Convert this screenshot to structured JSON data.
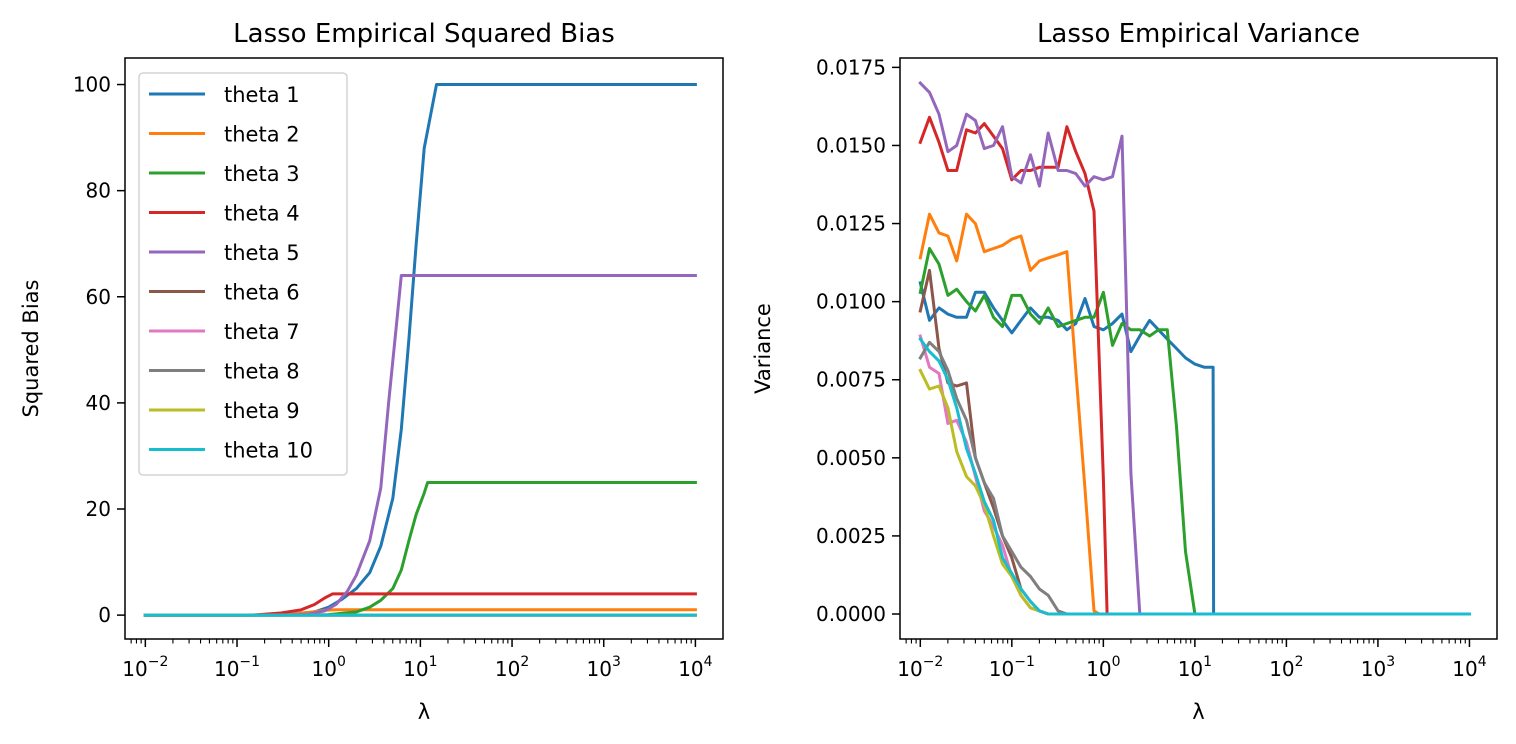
{
  "chart_data": [
    {
      "type": "line",
      "title": "Lasso Empirical Squared Bias",
      "xlabel": "λ",
      "ylabel": "Squared Bias",
      "xscale": "log",
      "xlim": [
        0.006,
        20000
      ],
      "ylim": [
        -4.5,
        105
      ],
      "xticks": [
        {
          "value": 0.01,
          "base": "10",
          "exp": "−2"
        },
        {
          "value": 0.1,
          "base": "10",
          "exp": "−1"
        },
        {
          "value": 1,
          "base": "10",
          "exp": "0"
        },
        {
          "value": 10,
          "base": "10",
          "exp": "1"
        },
        {
          "value": 100,
          "base": "10",
          "exp": "2"
        },
        {
          "value": 1000,
          "base": "10",
          "exp": "3"
        },
        {
          "value": 10000,
          "base": "10",
          "exp": "4"
        }
      ],
      "yticks": [
        {
          "value": 0,
          "label": "0"
        },
        {
          "value": 20,
          "label": "20"
        },
        {
          "value": 40,
          "label": "40"
        },
        {
          "value": 60,
          "label": "60"
        },
        {
          "value": 80,
          "label": "80"
        },
        {
          "value": 100,
          "label": "100"
        }
      ],
      "legend": "upper-left",
      "grid": false,
      "series": [
        {
          "name": "theta 1",
          "color": "#1f77b4",
          "x": [
            0.01,
            0.1,
            0.2,
            0.4,
            0.7,
            1.0,
            1.4,
            2.0,
            2.8,
            3.7,
            5.0,
            6.2,
            7.5,
            9.0,
            11.0,
            15.0,
            20.0,
            100,
            1000,
            10000
          ],
          "y": [
            0,
            0,
            0.05,
            0.2,
            0.6,
            1.5,
            3,
            5,
            8,
            13,
            22,
            35,
            52,
            70,
            88,
            100,
            100,
            100,
            100,
            100
          ]
        },
        {
          "name": "theta 2",
          "color": "#ff7f0e",
          "x": [
            0.01,
            0.1,
            0.3,
            0.6,
            0.9,
            1.2,
            2.0,
            10,
            100,
            1000,
            10000
          ],
          "y": [
            0,
            0,
            0.1,
            0.5,
            0.9,
            1,
            1,
            1,
            1,
            1,
            1
          ]
        },
        {
          "name": "theta 3",
          "color": "#2ca02c",
          "x": [
            0.01,
            0.3,
            1.0,
            2.0,
            2.8,
            3.7,
            5.0,
            6.2,
            7.5,
            9.0,
            11.0,
            12.0,
            15.0,
            100,
            1000,
            10000
          ],
          "y": [
            0,
            0,
            0.1,
            0.6,
            1.5,
            2.8,
            5,
            8.5,
            14,
            19,
            23,
            25,
            25,
            25,
            25,
            25
          ]
        },
        {
          "name": "theta 4",
          "color": "#d62728",
          "x": [
            0.01,
            0.15,
            0.3,
            0.5,
            0.7,
            0.9,
            1.1,
            1.3,
            2.0,
            10,
            100,
            1000,
            10000
          ],
          "y": [
            0,
            0,
            0.4,
            1.0,
            2.0,
            3.2,
            4,
            4,
            4,
            4,
            4,
            4,
            4
          ]
        },
        {
          "name": "theta 5",
          "color": "#9467bd",
          "x": [
            0.01,
            0.3,
            0.6,
            0.9,
            1.2,
            1.6,
            2.0,
            2.8,
            3.7,
            4.5,
            5.5,
            6.2,
            7.0,
            10,
            100,
            1000,
            10000
          ],
          "y": [
            0,
            0,
            0.2,
            0.8,
            2.0,
            4.5,
            7.5,
            14,
            24,
            40,
            55,
            64,
            64,
            64,
            64,
            64,
            64
          ]
        },
        {
          "name": "theta 6",
          "color": "#8c564b",
          "x": [
            0.01,
            10000
          ],
          "y": [
            0,
            0
          ]
        },
        {
          "name": "theta 7",
          "color": "#e377c2",
          "x": [
            0.01,
            10000
          ],
          "y": [
            0,
            0
          ]
        },
        {
          "name": "theta 8",
          "color": "#7f7f7f",
          "x": [
            0.01,
            10000
          ],
          "y": [
            0,
            0
          ]
        },
        {
          "name": "theta 9",
          "color": "#bcbd22",
          "x": [
            0.01,
            10000
          ],
          "y": [
            0,
            0
          ]
        },
        {
          "name": "theta 10",
          "color": "#17becf",
          "x": [
            0.01,
            10000
          ],
          "y": [
            0,
            0
          ]
        }
      ]
    },
    {
      "type": "line",
      "title": "Lasso Empirical Variance",
      "xlabel": "λ",
      "ylabel": "Variance",
      "xscale": "log",
      "xlim": [
        0.006,
        20000
      ],
      "ylim": [
        -0.0008,
        0.0178
      ],
      "xticks": [
        {
          "value": 0.01,
          "base": "10",
          "exp": "−2"
        },
        {
          "value": 0.1,
          "base": "10",
          "exp": "−1"
        },
        {
          "value": 1,
          "base": "10",
          "exp": "0"
        },
        {
          "value": 10,
          "base": "10",
          "exp": "1"
        },
        {
          "value": 100,
          "base": "10",
          "exp": "2"
        },
        {
          "value": 1000,
          "base": "10",
          "exp": "3"
        },
        {
          "value": 10000,
          "base": "10",
          "exp": "4"
        }
      ],
      "yticks": [
        {
          "value": 0,
          "label": "0.0000"
        },
        {
          "value": 0.0025,
          "label": "0.0025"
        },
        {
          "value": 0.005,
          "label": "0.0050"
        },
        {
          "value": 0.0075,
          "label": "0.0075"
        },
        {
          "value": 0.01,
          "label": "0.0100"
        },
        {
          "value": 0.0125,
          "label": "0.0125"
        },
        {
          "value": 0.015,
          "label": "0.0150"
        },
        {
          "value": 0.0175,
          "label": "0.0175"
        }
      ],
      "legend": "none",
      "grid": false,
      "series": [
        {
          "name": "theta 1",
          "color": "#1f77b4",
          "x": [
            0.01,
            0.0126,
            0.016,
            0.02,
            0.025,
            0.032,
            0.04,
            0.05,
            0.063,
            0.079,
            0.1,
            0.126,
            0.16,
            0.2,
            0.25,
            0.32,
            0.4,
            0.5,
            0.63,
            0.79,
            1.0,
            1.26,
            1.6,
            2.0,
            2.5,
            3.2,
            4.0,
            5.0,
            6.3,
            7.9,
            10.0,
            12.6,
            15.8,
            16.0,
            20.0,
            10000
          ],
          "y": [
            0.0106,
            0.0094,
            0.0098,
            0.0096,
            0.0095,
            0.0095,
            0.0103,
            0.0103,
            0.0098,
            0.0094,
            0.009,
            0.0094,
            0.0098,
            0.0095,
            0.0095,
            0.0094,
            0.0091,
            0.0093,
            0.0101,
            0.0092,
            0.0091,
            0.0093,
            0.0096,
            0.0084,
            0.0089,
            0.0094,
            0.0091,
            0.0088,
            0.0085,
            0.0082,
            0.008,
            0.0079,
            0.0079,
            0,
            0,
            0
          ]
        },
        {
          "name": "theta 2",
          "color": "#ff7f0e",
          "x": [
            0.01,
            0.0126,
            0.016,
            0.02,
            0.025,
            0.032,
            0.04,
            0.05,
            0.063,
            0.079,
            0.1,
            0.126,
            0.16,
            0.2,
            0.25,
            0.32,
            0.4,
            0.5,
            0.63,
            0.79,
            0.9,
            1.0,
            10000
          ],
          "y": [
            0.0114,
            0.0128,
            0.0122,
            0.0121,
            0.0113,
            0.0128,
            0.0125,
            0.0116,
            0.0117,
            0.0118,
            0.012,
            0.0121,
            0.011,
            0.0113,
            0.0114,
            0.0115,
            0.0116,
            0.0078,
            0.004,
            0.0001,
            0,
            0,
            0
          ]
        },
        {
          "name": "theta 3",
          "color": "#2ca02c",
          "x": [
            0.01,
            0.0126,
            0.016,
            0.02,
            0.025,
            0.032,
            0.04,
            0.05,
            0.063,
            0.079,
            0.1,
            0.126,
            0.16,
            0.2,
            0.25,
            0.32,
            0.4,
            0.5,
            0.63,
            0.79,
            1.0,
            1.26,
            1.6,
            2.0,
            2.5,
            3.2,
            4.0,
            5.0,
            6.3,
            7.9,
            10.0,
            11.0,
            12.6,
            10000
          ],
          "y": [
            0.0103,
            0.0117,
            0.0112,
            0.0102,
            0.0104,
            0.01,
            0.0097,
            0.0102,
            0.0095,
            0.0092,
            0.0102,
            0.0102,
            0.0096,
            0.0093,
            0.0098,
            0.0092,
            0.0093,
            0.0094,
            0.0095,
            0.0095,
            0.0103,
            0.0086,
            0.0093,
            0.0091,
            0.0091,
            0.0089,
            0.0091,
            0.0091,
            0.006,
            0.002,
            0,
            0,
            0,
            0
          ]
        },
        {
          "name": "theta 4",
          "color": "#d62728",
          "x": [
            0.01,
            0.0126,
            0.016,
            0.02,
            0.025,
            0.032,
            0.04,
            0.05,
            0.063,
            0.079,
            0.1,
            0.126,
            0.16,
            0.2,
            0.25,
            0.32,
            0.4,
            0.5,
            0.63,
            0.79,
            1.0,
            1.1,
            1.26,
            10000
          ],
          "y": [
            0.0151,
            0.0159,
            0.0151,
            0.0142,
            0.0142,
            0.0155,
            0.0154,
            0.0157,
            0.0153,
            0.0149,
            0.0139,
            0.0142,
            0.0142,
            0.0143,
            0.0143,
            0.0143,
            0.0156,
            0.0148,
            0.0141,
            0.0129,
            0.0043,
            0,
            0,
            0
          ]
        },
        {
          "name": "theta 5",
          "color": "#9467bd",
          "x": [
            0.01,
            0.0126,
            0.016,
            0.02,
            0.025,
            0.032,
            0.04,
            0.05,
            0.063,
            0.079,
            0.1,
            0.126,
            0.16,
            0.2,
            0.25,
            0.32,
            0.4,
            0.5,
            0.63,
            0.79,
            1.0,
            1.26,
            1.6,
            2.0,
            2.5,
            3.2,
            4.0,
            5.0,
            6.0,
            6.3,
            10000
          ],
          "y": [
            0.017,
            0.0167,
            0.016,
            0.0148,
            0.015,
            0.016,
            0.0158,
            0.0149,
            0.015,
            0.0156,
            0.014,
            0.0138,
            0.0147,
            0.0137,
            0.0154,
            0.0142,
            0.0142,
            0.0141,
            0.0137,
            0.014,
            0.0139,
            0.014,
            0.0153,
            0.0045,
            0,
            0,
            0,
            0,
            0,
            0,
            0
          ]
        },
        {
          "name": "theta 6",
          "color": "#8c564b",
          "x": [
            0.01,
            0.0126,
            0.016,
            0.02,
            0.025,
            0.032,
            0.04,
            0.05,
            0.063,
            0.079,
            0.1,
            0.126,
            0.16,
            0.2,
            0.25,
            0.32,
            0.4,
            0.5,
            10000
          ],
          "y": [
            0.0097,
            0.011,
            0.0085,
            0.0074,
            0.0073,
            0.0074,
            0.005,
            0.0042,
            0.0034,
            0.0025,
            0.0018,
            0.0008,
            0.0004,
            0.0001,
            0,
            0,
            0,
            0,
            0
          ]
        },
        {
          "name": "theta 7",
          "color": "#e377c2",
          "x": [
            0.01,
            0.0126,
            0.016,
            0.02,
            0.025,
            0.032,
            0.04,
            0.05,
            0.063,
            0.079,
            0.1,
            0.126,
            0.16,
            0.2,
            0.25,
            0.32,
            0.4,
            10000
          ],
          "y": [
            0.0089,
            0.0079,
            0.0077,
            0.0061,
            0.0062,
            0.0055,
            0.0044,
            0.0033,
            0.0028,
            0.0022,
            0.0012,
            0.0006,
            0.0002,
            0.0001,
            0,
            0,
            0,
            0
          ]
        },
        {
          "name": "theta 8",
          "color": "#7f7f7f",
          "x": [
            0.01,
            0.0126,
            0.016,
            0.02,
            0.025,
            0.032,
            0.04,
            0.05,
            0.063,
            0.079,
            0.1,
            0.126,
            0.16,
            0.2,
            0.25,
            0.32,
            0.4,
            0.5,
            0.63,
            10000
          ],
          "y": [
            0.0082,
            0.0087,
            0.0084,
            0.0078,
            0.0069,
            0.0062,
            0.005,
            0.0042,
            0.0037,
            0.0025,
            0.002,
            0.0015,
            0.0012,
            0.0008,
            0.0006,
            0.0001,
            0,
            0,
            0,
            0
          ]
        },
        {
          "name": "theta 9",
          "color": "#bcbd22",
          "x": [
            0.01,
            0.0126,
            0.016,
            0.02,
            0.025,
            0.032,
            0.04,
            0.05,
            0.063,
            0.079,
            0.1,
            0.126,
            0.16,
            0.2,
            0.25,
            0.32,
            0.4,
            10000
          ],
          "y": [
            0.0078,
            0.0072,
            0.0073,
            0.0066,
            0.0052,
            0.0044,
            0.0041,
            0.0035,
            0.0025,
            0.0016,
            0.0012,
            0.0006,
            0.0002,
            0.0001,
            0,
            0,
            0,
            0
          ]
        },
        {
          "name": "theta 10",
          "color": "#17becf",
          "x": [
            0.01,
            0.0126,
            0.016,
            0.02,
            0.025,
            0.032,
            0.04,
            0.05,
            0.063,
            0.079,
            0.1,
            0.126,
            0.16,
            0.2,
            0.25,
            0.32,
            0.4,
            10000
          ],
          "y": [
            0.0088,
            0.0084,
            0.0081,
            0.0075,
            0.0066,
            0.0053,
            0.0045,
            0.0036,
            0.003,
            0.0018,
            0.0013,
            0.0008,
            0.0004,
            0.0001,
            0,
            0,
            0,
            0
          ]
        }
      ]
    }
  ]
}
